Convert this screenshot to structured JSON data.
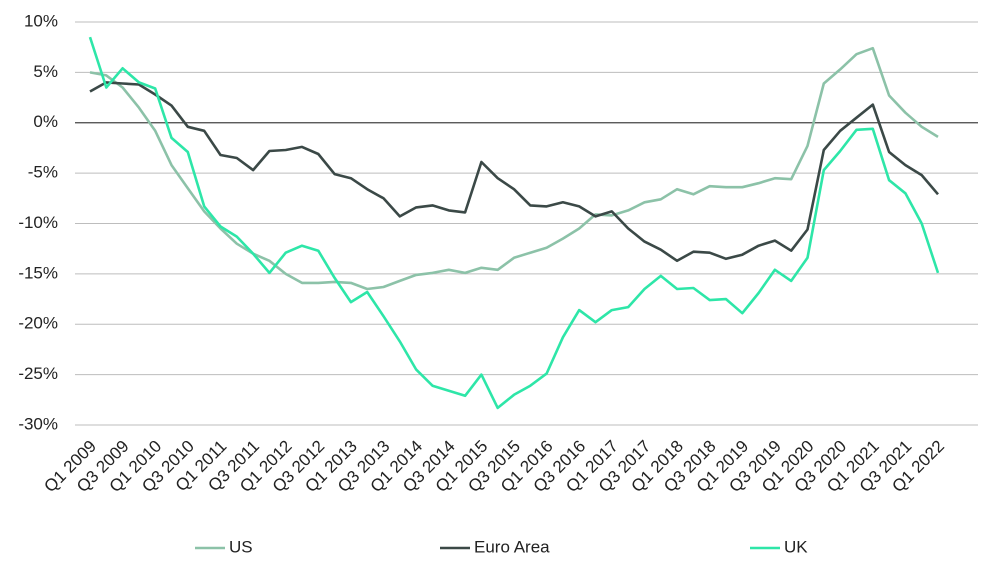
{
  "chart_data": {
    "type": "line",
    "categories": [
      "Q1 2009",
      null,
      "Q3 2009",
      null,
      "Q1 2010",
      null,
      "Q3 2010",
      null,
      "Q1 2011",
      null,
      "Q3 2011",
      null,
      "Q1 2012",
      null,
      "Q3 2012",
      null,
      "Q1 2013",
      null,
      "Q3 2013",
      null,
      "Q1 2014",
      null,
      "Q3 2014",
      null,
      "Q1 2015",
      null,
      "Q3 2015",
      null,
      "Q1 2016",
      null,
      "Q3 2016",
      null,
      "Q1 2017",
      null,
      "Q3 2017",
      null,
      "Q1 2018",
      null,
      "Q3 2018",
      null,
      "Q1 2019",
      null,
      "Q3 2019",
      null,
      "Q1 2020",
      null,
      "Q3 2020",
      null,
      "Q1 2021",
      null,
      "Q3 2021",
      null,
      "Q1 2022"
    ],
    "series": [
      {
        "name": "US",
        "color": "#8cc2a8",
        "values": [
          5.0,
          4.7,
          3.5,
          1.5,
          -0.8,
          -4.2,
          -6.5,
          -8.8,
          -10.5,
          -12.0,
          -13.0,
          -13.7,
          -15.0,
          -15.9,
          -15.9,
          -15.8,
          -15.9,
          -16.5,
          -16.3,
          -15.7,
          -15.1,
          -14.9,
          -14.6,
          -14.9,
          -14.4,
          -14.6,
          -13.4,
          -12.9,
          -12.4,
          -11.5,
          -10.5,
          -9.1,
          -9.2,
          -8.7,
          -7.9,
          -7.6,
          -6.6,
          -7.1,
          -6.3,
          -6.4,
          -6.4,
          -6.0,
          -5.5,
          -5.6,
          -2.3,
          3.9,
          5.3,
          6.8,
          7.4,
          2.7,
          1.0,
          -0.4,
          -1.4
        ]
      },
      {
        "name": "Euro Area",
        "color": "#3b4947",
        "values": [
          3.1,
          4.0,
          3.9,
          3.8,
          2.8,
          1.7,
          -0.4,
          -0.8,
          -3.2,
          -3.5,
          -4.7,
          -2.8,
          -2.7,
          -2.4,
          -3.1,
          -5.1,
          -5.5,
          -6.6,
          -7.5,
          -9.3,
          -8.4,
          -8.2,
          -8.7,
          -8.9,
          -3.9,
          -5.5,
          -6.6,
          -8.2,
          -8.3,
          -7.9,
          -8.3,
          -9.3,
          -8.8,
          -10.5,
          -11.8,
          -12.6,
          -13.7,
          -12.8,
          -12.9,
          -13.5,
          -13.1,
          -12.2,
          -11.7,
          -12.7,
          -10.6,
          -2.7,
          -0.8,
          0.5,
          1.8,
          -2.9,
          -4.2,
          -5.2,
          -7.1
        ]
      },
      {
        "name": "UK",
        "color": "#2ee6a8",
        "values": [
          8.5,
          3.5,
          5.4,
          4.0,
          3.4,
          -1.5,
          -2.9,
          -8.3,
          -10.3,
          -11.3,
          -13.0,
          -14.9,
          -12.9,
          -12.2,
          -12.7,
          -15.4,
          -17.8,
          -16.8,
          -19.2,
          -21.7,
          -24.5,
          -26.1,
          -26.6,
          -27.1,
          -25.0,
          -28.3,
          -27.0,
          -26.1,
          -24.9,
          -21.3,
          -18.6,
          -19.8,
          -18.6,
          -18.3,
          -16.5,
          -15.2,
          -16.5,
          -16.4,
          -17.6,
          -17.5,
          -18.9,
          -16.9,
          -14.6,
          -15.7,
          -13.4,
          -4.7,
          -2.8,
          -0.7,
          -0.6,
          -5.7,
          -7.0,
          -10.0,
          -14.9
        ]
      }
    ],
    "ylim": [
      -30,
      10
    ],
    "yticks": [
      {
        "value": -30,
        "label": "-30%"
      },
      {
        "value": -25,
        "label": "-25%"
      },
      {
        "value": -20,
        "label": "-20%"
      },
      {
        "value": -15,
        "label": "-15%"
      },
      {
        "value": -10,
        "label": "-10%"
      },
      {
        "value": -5,
        "label": "-5%"
      },
      {
        "value": 0,
        "label": "0%"
      },
      {
        "value": 5,
        "label": "5%"
      },
      {
        "value": 10,
        "label": "10%"
      }
    ],
    "grid": true,
    "legend": "bottom"
  }
}
